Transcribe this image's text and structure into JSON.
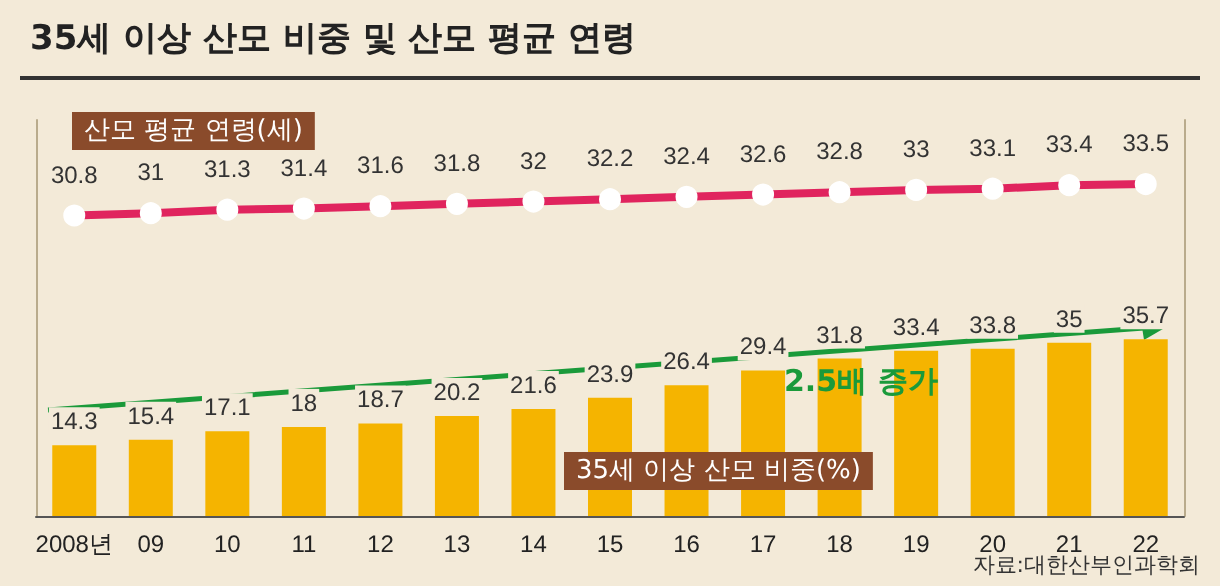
{
  "chart_data": {
    "type": "bar",
    "title": "35세 이상 산모 비중 및 산모 평균 연령",
    "categories": [
      "2008년",
      "09",
      "10",
      "11",
      "12",
      "13",
      "14",
      "15",
      "16",
      "17",
      "18",
      "19",
      "20",
      "21",
      "22"
    ],
    "series": [
      {
        "name": "35세 이상 산모 비중(%)",
        "color": "#f5b400",
        "values": [
          14.3,
          15.4,
          17.1,
          18,
          18.7,
          20.2,
          21.6,
          23.9,
          26.4,
          29.4,
          31.8,
          33.4,
          33.8,
          35,
          35.7
        ]
      },
      {
        "name": "산모 평균 연령(세)",
        "type": "line",
        "axis": "y2",
        "color": "#e0245e",
        "marker": "circle",
        "values": [
          30.8,
          31,
          31.3,
          31.4,
          31.6,
          31.8,
          32,
          32.2,
          32.4,
          32.6,
          32.8,
          33,
          33.1,
          33.4,
          33.5
        ]
      }
    ],
    "ylim": [
      0,
      80
    ],
    "y2lim": [
      5,
      39
    ],
    "tick_labels": "x",
    "data_labels": true,
    "legend": false,
    "annotations": [
      "2.5배 증가",
      "자료:대한산부인과학회"
    ]
  }
}
